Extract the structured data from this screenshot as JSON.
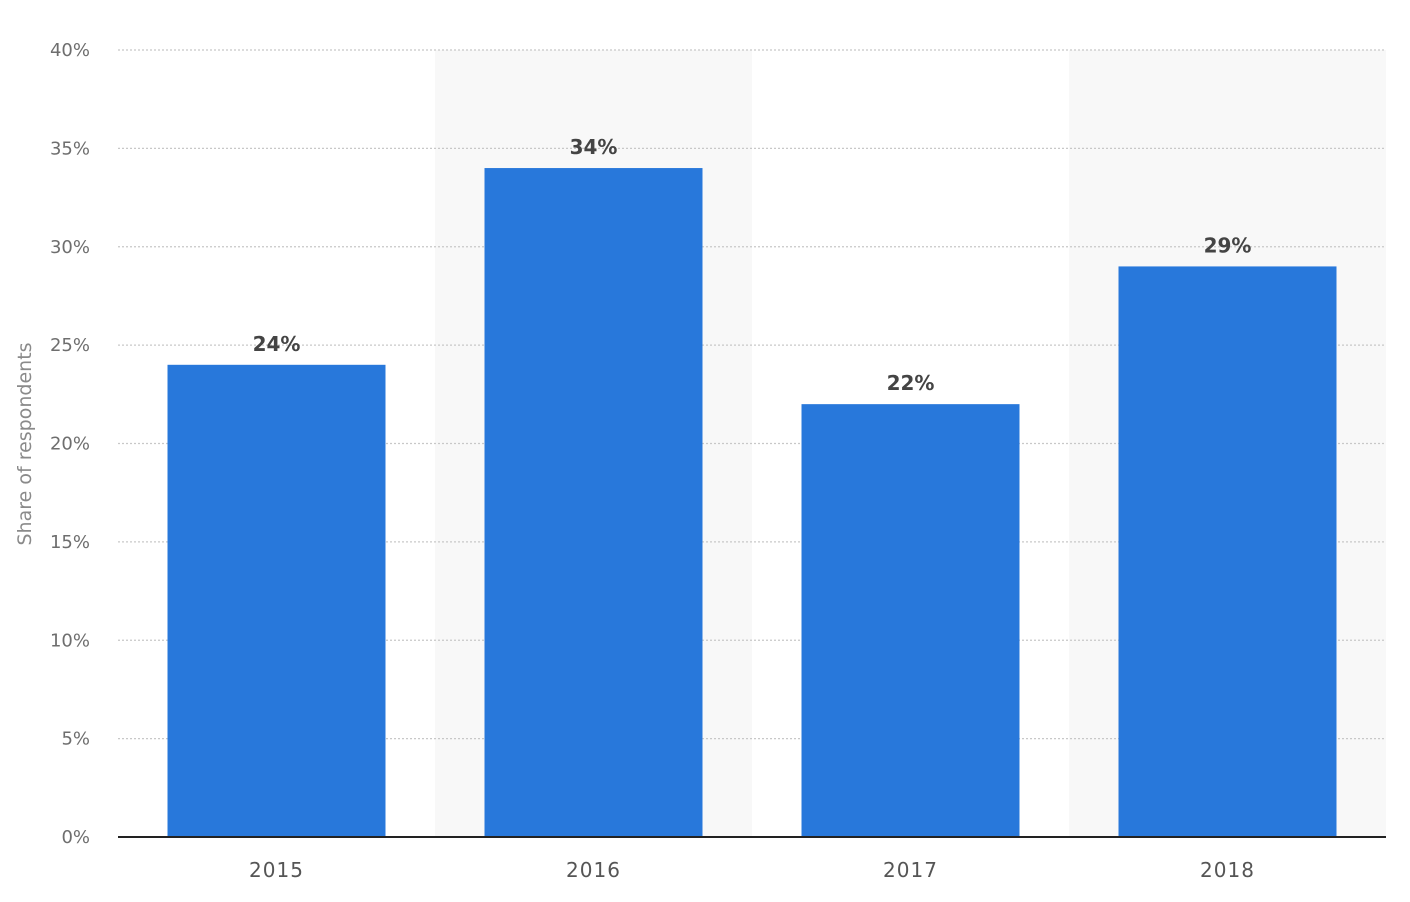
{
  "chart_data": {
    "type": "bar",
    "categories": [
      "2015",
      "2016",
      "2017",
      "2018"
    ],
    "values": [
      24,
      34,
      22,
      29
    ],
    "data_labels": [
      "24%",
      "34%",
      "22%",
      "29%"
    ],
    "ylabel": "Share of respondents",
    "xlabel": "",
    "ylim": [
      0,
      40
    ],
    "yticks": [
      "0%",
      "5%",
      "10%",
      "15%",
      "20%",
      "25%",
      "30%",
      "35%",
      "40%"
    ],
    "grid": "horizontal dotted",
    "legend": "none",
    "colors": {
      "bar": "#2878db",
      "alt_band": "#f8f8f8",
      "grid": "#c8c8c8",
      "axis": "#222222"
    }
  }
}
